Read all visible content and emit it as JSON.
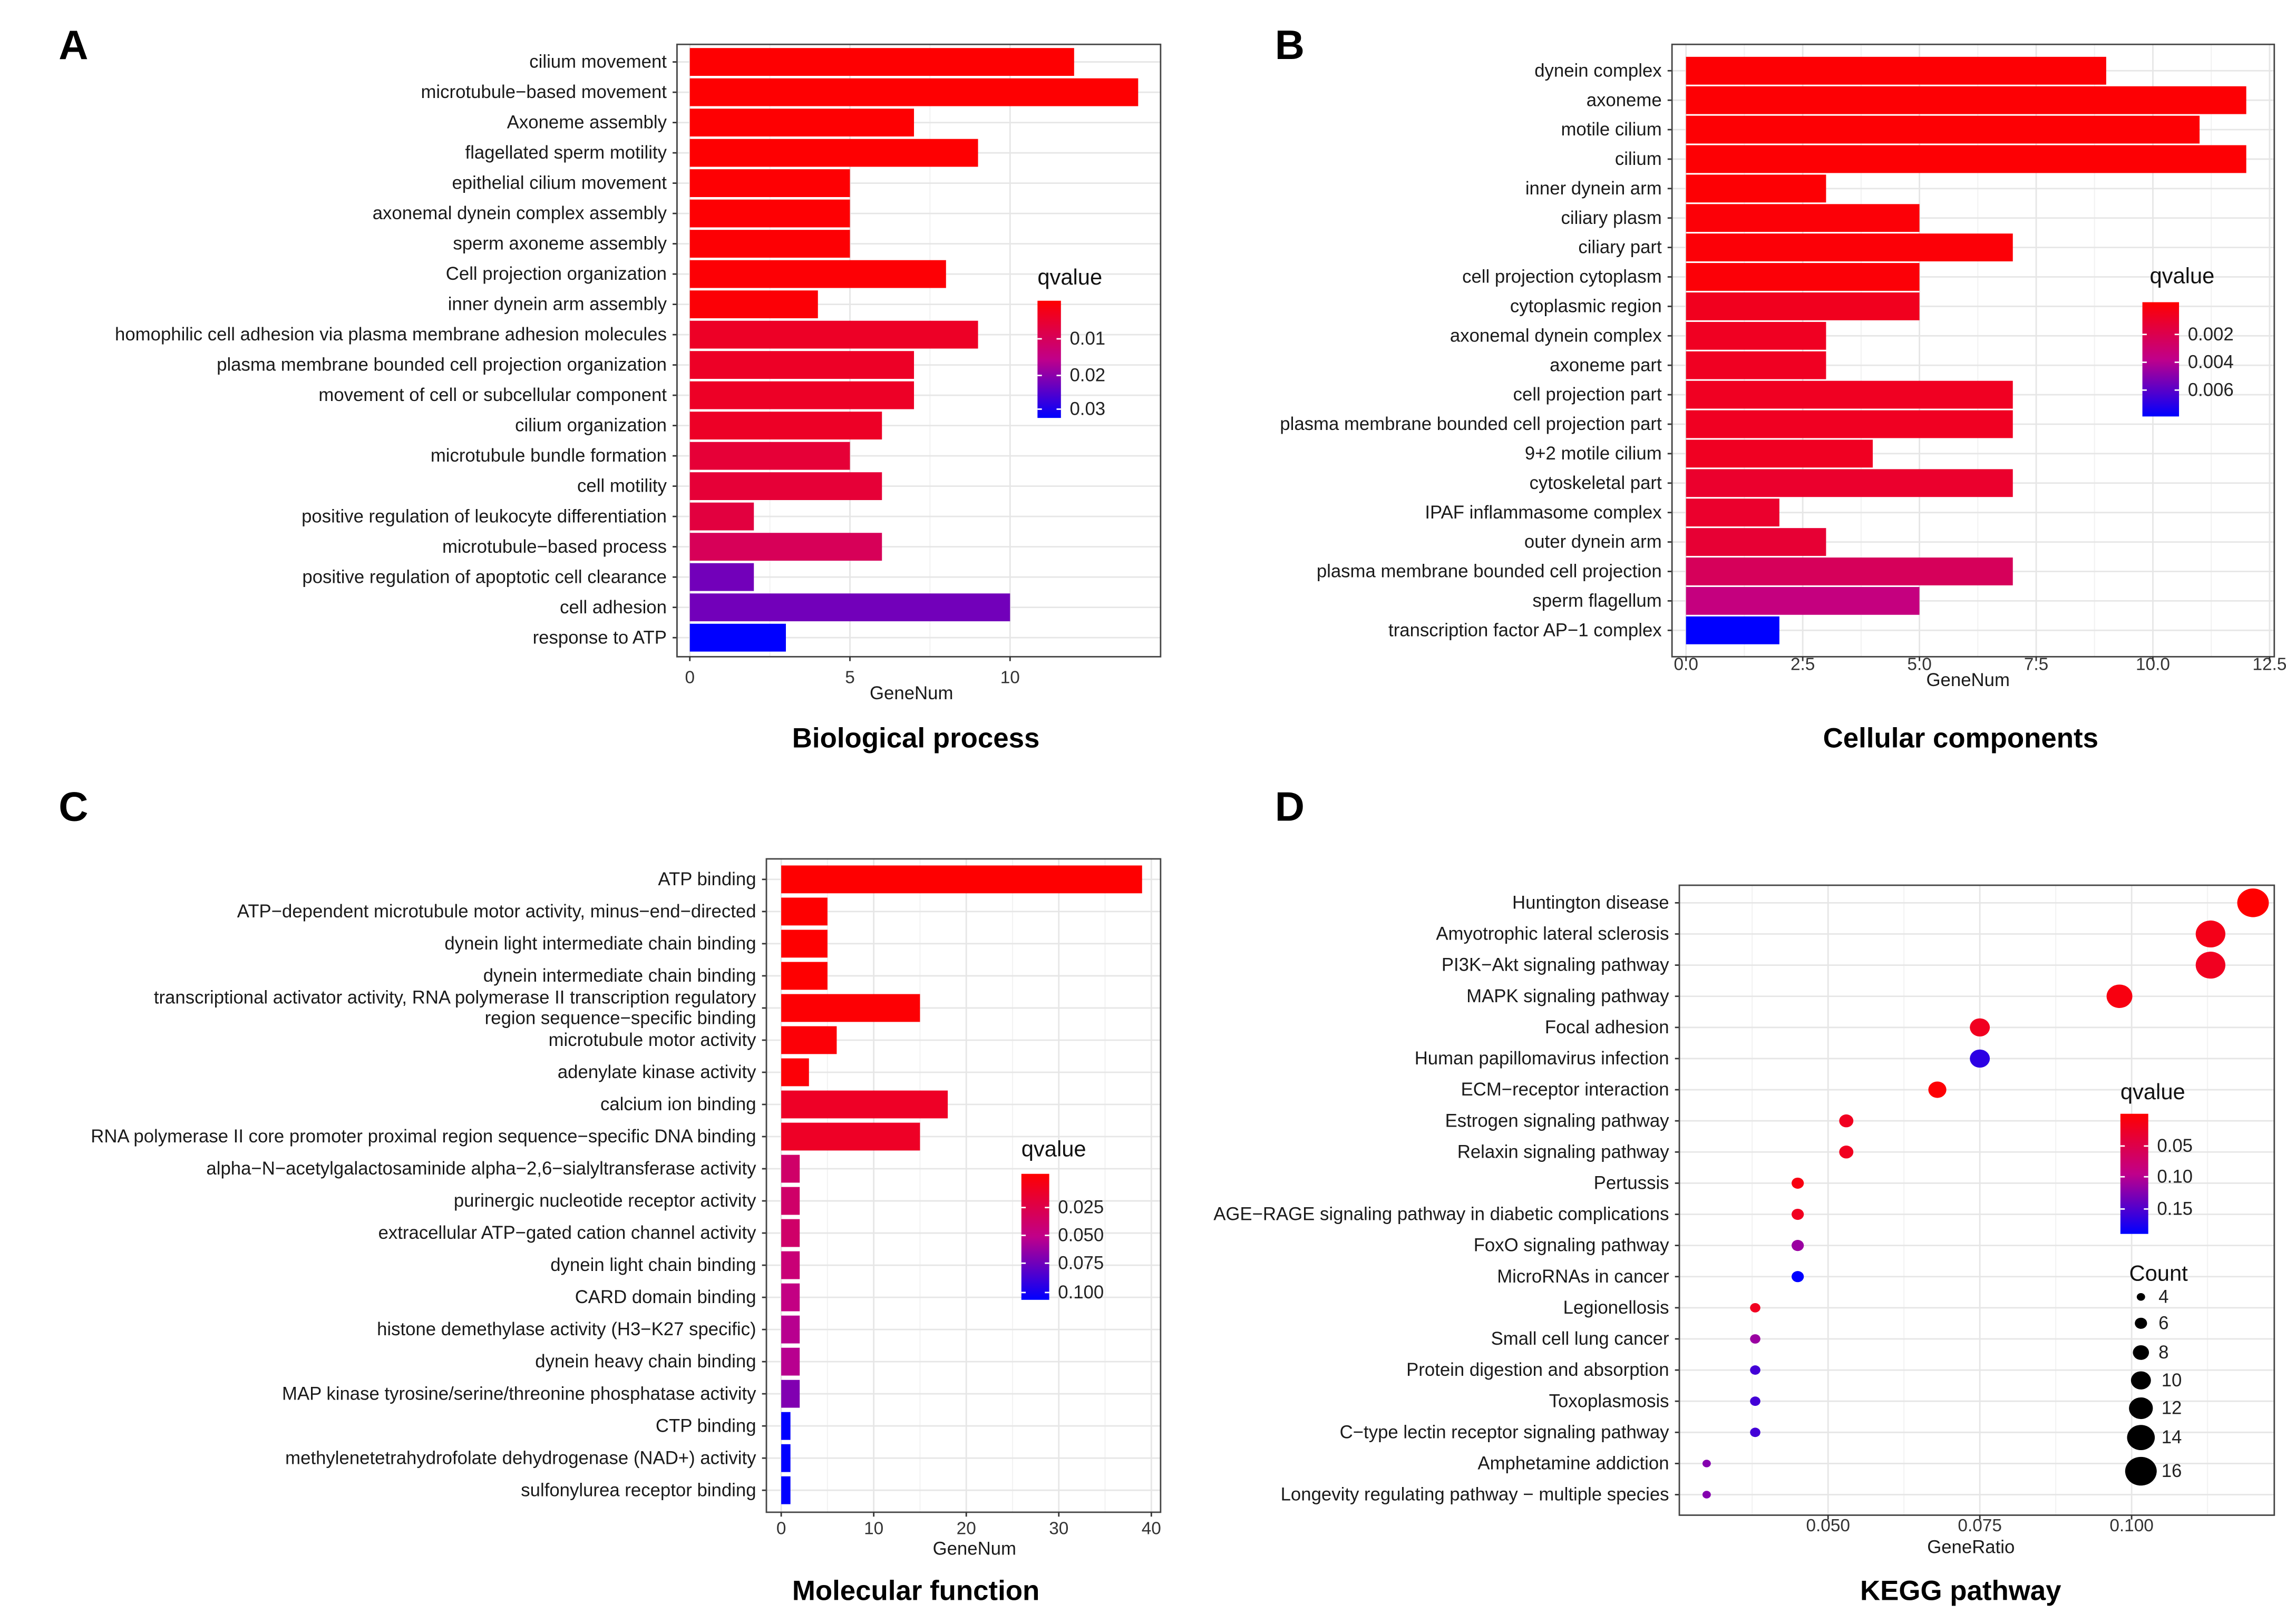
{
  "chart_data": [
    {
      "panel_label": "A",
      "type": "bar",
      "orientation": "horizontal",
      "title": "Biological process",
      "xlabel": "GeneNum",
      "xticks": [
        0,
        5,
        10
      ],
      "xtick_labels": [
        "0",
        "5",
        "10"
      ],
      "xlim": [
        -0.4,
        14.7
      ],
      "categories": [
        "cilium movement",
        "microtubule−based movement",
        "Axoneme assembly",
        "flagellated sperm motility",
        "epithelial cilium movement",
        "axonemal dynein complex assembly",
        "sperm axoneme assembly",
        "Cell projection organization",
        "inner dynein arm assembly",
        "homophilic cell adhesion via plasma membrane adhesion molecules",
        "plasma membrane bounded cell projection organization",
        "movement of cell or subcellular component",
        "cilium organization",
        "microtubule bundle formation",
        "cell motility",
        "positive regulation of leukocyte differentiation",
        "microtubule−based process",
        "positive regulation of apoptotic cell clearance",
        "cell adhesion",
        "response to ATP"
      ],
      "values": [
        12,
        14,
        7,
        9,
        5,
        5,
        5,
        8,
        4,
        9,
        7,
        7,
        6,
        5,
        6,
        2,
        6,
        2,
        10,
        3
      ],
      "qvalues": [
        0.0005,
        0.0005,
        0.0006,
        0.0006,
        0.0007,
        0.0007,
        0.0008,
        0.0009,
        0.001,
        0.005,
        0.005,
        0.005,
        0.005,
        0.007,
        0.007,
        0.008,
        0.011,
        0.024,
        0.024,
        0.034
      ],
      "color_legend": {
        "title": "qvalue",
        "range": [
          0.0003,
          0.034
        ],
        "labels": [
          "0.01",
          "0.02",
          "0.03"
        ],
        "low_color": "#ff0000",
        "high_color": "#0000ff"
      }
    },
    {
      "panel_label": "B",
      "type": "bar",
      "orientation": "horizontal",
      "title": "Cellular components",
      "xlabel": "GeneNum",
      "xticks": [
        0,
        2.5,
        5,
        7.5,
        10,
        12.5
      ],
      "xtick_labels": [
        "0.0",
        "2.5",
        "5.0",
        "7.5",
        "10.0",
        "12.5"
      ],
      "xlim": [
        -0.3,
        12.6
      ],
      "categories": [
        "dynein complex",
        "axoneme",
        "motile cilium",
        "cilium",
        "inner dynein arm",
        "ciliary plasm",
        "ciliary part",
        "cell projection cytoplasm",
        "cytoplasmic region",
        "axonemal dynein complex",
        "axoneme part",
        "cell projection part",
        "plasma membrane bounded cell projection part",
        "9+2 motile cilium",
        "cytoskeletal part",
        "IPAF inflammasome complex",
        "outer dynein arm",
        "plasma membrane bounded cell projection",
        "sperm flagellum",
        "transcription factor AP−1 complex"
      ],
      "values": [
        9,
        12,
        11,
        12,
        3,
        5,
        7,
        5,
        5,
        3,
        3,
        7,
        7,
        4,
        7,
        2,
        3,
        7,
        5,
        2
      ],
      "qvalues": [
        0.0002,
        0.0002,
        0.0002,
        0.0002,
        0.0002,
        0.0003,
        0.0003,
        0.0003,
        0.0009,
        0.001,
        0.001,
        0.001,
        0.001,
        0.001,
        0.0013,
        0.0013,
        0.0015,
        0.0025,
        0.0035,
        0.0075
      ],
      "color_legend": {
        "title": "qvalue",
        "range": [
          0.0001,
          0.0075
        ],
        "labels": [
          "0.002",
          "0.004",
          "0.006"
        ],
        "low_color": "#ff0000",
        "high_color": "#0000ff"
      }
    },
    {
      "panel_label": "C",
      "type": "bar",
      "orientation": "horizontal",
      "title": "Molecular function",
      "xlabel": "GeneNum",
      "xticks": [
        0,
        10,
        20,
        30,
        40
      ],
      "xtick_labels": [
        "0",
        "10",
        "20",
        "30",
        "40"
      ],
      "xlim": [
        -1.6,
        41
      ],
      "categories": [
        "ATP binding",
        "ATP−dependent microtubule motor activity, minus−end−directed",
        "dynein light intermediate chain binding",
        "dynein intermediate chain binding",
        "transcriptional activator activity, RNA polymerase II transcription regulatory\nregion sequence−specific binding",
        "microtubule motor activity",
        "adenylate kinase activity",
        "calcium ion binding",
        "RNA polymerase II core promoter proximal region sequence−specific DNA binding",
        "alpha−N−acetylgalactosaminide alpha−2,6−sialyltransferase activity",
        "purinergic nucleotide receptor activity",
        "extracellular ATP−gated cation channel activity",
        "dynein light chain binding",
        "CARD domain binding",
        "histone demethylase activity (H3−K27 specific)",
        "dynein heavy chain binding",
        "MAP kinase tyrosine/serine/threonine phosphatase activity",
        "CTP binding",
        "methylenetetrahydrofolate dehydrogenase (NAD+) activity",
        "sulfonylurea receptor binding"
      ],
      "values": [
        39,
        5,
        5,
        5,
        15,
        6,
        3,
        18,
        15,
        2,
        2,
        2,
        2,
        2,
        2,
        2,
        2,
        1,
        1,
        1
      ],
      "qvalues": [
        0.001,
        0.001,
        0.001,
        0.001,
        0.002,
        0.003,
        0.003,
        0.015,
        0.015,
        0.04,
        0.04,
        0.04,
        0.045,
        0.05,
        0.055,
        0.055,
        0.07,
        0.105,
        0.105,
        0.105
      ],
      "color_legend": {
        "title": "qvalue",
        "range": [
          0.0005,
          0.105
        ],
        "labels": [
          "0.025",
          "0.050",
          "0.075",
          "0.100"
        ],
        "low_color": "#ff0000",
        "high_color": "#0000ff"
      }
    },
    {
      "panel_label": "D",
      "type": "scatter",
      "title": "KEGG pathway",
      "xlabel": "GeneRatio",
      "xticks": [
        0.05,
        0.075,
        0.1
      ],
      "xtick_labels": [
        "0.050",
        "0.075",
        "0.100"
      ],
      "xlim": [
        0.0255,
        0.1235
      ],
      "categories": [
        "Huntington disease",
        "Amyotrophic lateral sclerosis",
        "PI3K−Akt signaling pathway",
        "MAPK signaling pathway",
        "Focal adhesion",
        "Human papillomavirus infection",
        "ECM−receptor interaction",
        "Estrogen signaling pathway",
        "Relaxin signaling pathway",
        "Pertussis",
        "AGE−RAGE signaling pathway in diabetic complications",
        "FoxO signaling pathway",
        "MicroRNAs in cancer",
        "Legionellosis",
        "Small cell lung cancer",
        "Protein digestion and absorption",
        "Toxoplasmosis",
        "C−type lectin receptor signaling pathway",
        "Amphetamine addiction",
        "Longevity regulating pathway −  multiple species"
      ],
      "x": [
        0.12,
        0.113,
        0.113,
        0.098,
        0.075,
        0.075,
        0.068,
        0.053,
        0.053,
        0.045,
        0.045,
        0.045,
        0.045,
        0.038,
        0.038,
        0.038,
        0.038,
        0.038,
        0.03,
        0.03
      ],
      "counts": [
        16,
        15,
        15,
        13,
        10,
        10,
        9,
        7,
        7,
        6,
        6,
        6,
        6,
        5,
        5,
        5,
        5,
        5,
        4,
        4
      ],
      "qvalues": [
        0.005,
        0.02,
        0.025,
        0.015,
        0.025,
        0.16,
        0.008,
        0.025,
        0.025,
        0.015,
        0.025,
        0.11,
        0.18,
        0.025,
        0.11,
        0.15,
        0.15,
        0.15,
        0.12,
        0.12
      ],
      "color_legend": {
        "title": "qvalue",
        "range": [
          0.005,
          0.18
        ],
        "labels": [
          "0.05",
          "0.10",
          "0.15"
        ],
        "low_color": "#ff0000",
        "high_color": "#0000ff"
      },
      "size_legend": {
        "title": "Count",
        "values": [
          4,
          6,
          8,
          10,
          12,
          14,
          16
        ],
        "labels": [
          "4",
          "6",
          "8",
          "10",
          "12",
          "14",
          "16"
        ]
      }
    }
  ]
}
